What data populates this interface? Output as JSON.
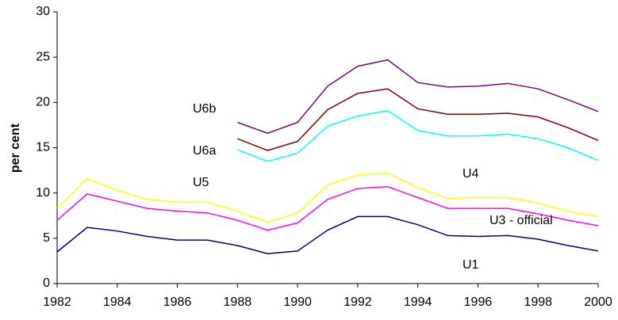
{
  "chart_data": {
    "type": "line",
    "y_label": "per cent",
    "x": [
      1982,
      1983,
      1984,
      1985,
      1986,
      1987,
      1988,
      1989,
      1990,
      1991,
      1992,
      1993,
      1994,
      1995,
      1996,
      1997,
      1998,
      1999,
      2000
    ],
    "series": [
      {
        "name": "U1",
        "color": "#000080",
        "values": [
          3.5,
          6.2,
          5.8,
          5.2,
          4.8,
          4.8,
          4.2,
          3.3,
          3.6,
          5.9,
          7.4,
          7.4,
          6.5,
          5.3,
          5.2,
          5.3,
          4.9,
          4.2,
          3.6
        ]
      },
      {
        "name": "U3 - official",
        "color": "#ff00ff",
        "values": [
          7.0,
          9.9,
          9.1,
          8.3,
          8.0,
          7.8,
          7.0,
          5.9,
          6.7,
          9.3,
          10.5,
          10.7,
          9.5,
          8.3,
          8.3,
          8.3,
          7.7,
          7.0,
          6.4
        ]
      },
      {
        "name": "U4",
        "color": "#ffff00",
        "values": [
          8.3,
          11.6,
          10.3,
          9.3,
          9.0,
          9.0,
          8.0,
          6.8,
          7.8,
          10.9,
          12.0,
          12.2,
          10.6,
          9.4,
          9.5,
          9.5,
          8.9,
          8.0,
          7.4
        ]
      },
      {
        "name": "U5",
        "color": "#00ffff",
        "values": [
          null,
          null,
          null,
          null,
          null,
          null,
          14.8,
          13.5,
          14.4,
          17.4,
          18.5,
          19.1,
          16.9,
          16.3,
          16.3,
          16.5,
          16.0,
          15.0,
          13.6
        ]
      },
      {
        "name": "U6a",
        "color": "#800000",
        "values": [
          null,
          null,
          null,
          null,
          null,
          null,
          16.0,
          14.7,
          15.7,
          19.2,
          21.0,
          21.5,
          19.3,
          18.7,
          18.7,
          18.8,
          18.4,
          17.2,
          15.8
        ]
      },
      {
        "name": "U6b",
        "color": "#800080",
        "values": [
          null,
          null,
          null,
          null,
          null,
          null,
          17.8,
          16.6,
          17.8,
          21.8,
          24.0,
          24.7,
          22.2,
          21.7,
          21.8,
          22.1,
          21.5,
          20.3,
          19.0
        ]
      }
    ],
    "xlim": [
      1982,
      2000
    ],
    "xticks": [
      1982,
      1984,
      1986,
      1988,
      1990,
      1992,
      1994,
      1996,
      1998,
      2000
    ],
    "ylim": [
      0,
      30
    ],
    "yticks": [
      0,
      5,
      10,
      15,
      20,
      25,
      30
    ],
    "grid": false,
    "legend": "inline"
  }
}
